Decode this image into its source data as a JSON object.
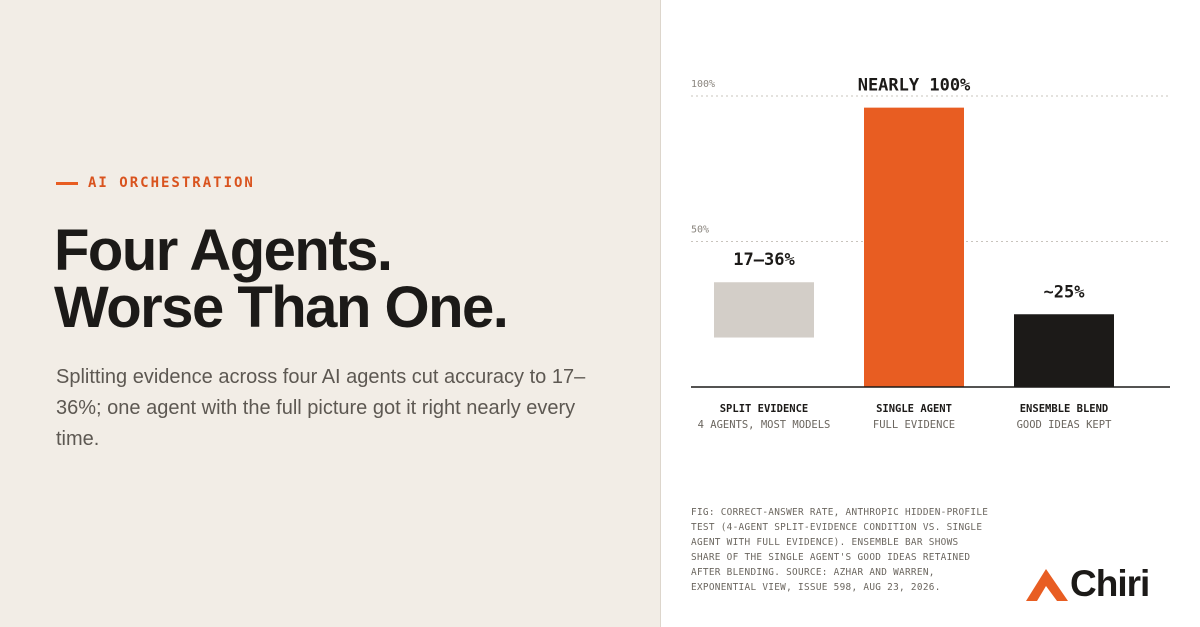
{
  "eyebrow": "AI ORCHESTRATION",
  "headline": [
    "Four Agents.",
    "Worse Than One."
  ],
  "body": "Splitting evidence across four AI agents cut accuracy to 17–36%; one agent with the full picture got it right nearly every time.",
  "caption": "FIG: CORRECT-ANSWER RATE, ANTHROPIC HIDDEN-PROFILE TEST (4-AGENT SPLIT-EVIDENCE CONDITION VS. SINGLE AGENT WITH FULL EVIDENCE). ENSEMBLE BAR SHOWS SHARE OF THE SINGLE AGENT'S GOOD IDEAS RETAINED AFTER BLENDING. SOURCE: AZHAR AND WARREN, EXPONENTIAL VIEW, ISSUE 598, AUG 23, 2026.",
  "logo": "Chiri",
  "chart_data": {
    "type": "bar",
    "categories": [
      "SPLIT EVIDENCE",
      "SINGLE AGENT",
      "ENSEMBLE BLEND"
    ],
    "subcategories": [
      "4 AGENTS, MOST MODELS",
      "FULL EVIDENCE",
      "GOOD IDEAS KEPT"
    ],
    "bases": [
      17,
      0,
      0
    ],
    "values": [
      36,
      96,
      25
    ],
    "value_labels": [
      "17–36%",
      "NEARLY 100%",
      "~25%"
    ],
    "colors": [
      "#d3cec8",
      "#e85d22",
      "#1c1a18"
    ],
    "ylim": [
      0,
      100
    ],
    "yticks": [
      {
        "value": 50,
        "label": "50%"
      },
      {
        "value": 100,
        "label": "100%"
      }
    ],
    "grid": true
  }
}
